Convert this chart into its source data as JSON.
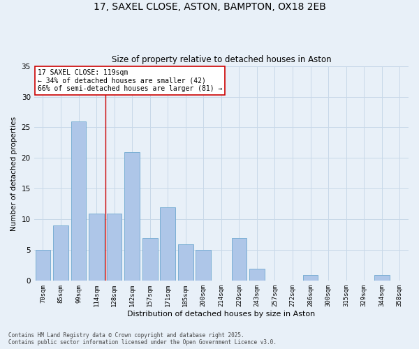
{
  "title_line1": "17, SAXEL CLOSE, ASTON, BAMPTON, OX18 2EB",
  "title_line2": "Size of property relative to detached houses in Aston",
  "xlabel": "Distribution of detached houses by size in Aston",
  "ylabel": "Number of detached properties",
  "categories": [
    "70sqm",
    "85sqm",
    "99sqm",
    "114sqm",
    "128sqm",
    "142sqm",
    "157sqm",
    "171sqm",
    "185sqm",
    "200sqm",
    "214sqm",
    "229sqm",
    "243sqm",
    "257sqm",
    "272sqm",
    "286sqm",
    "300sqm",
    "315sqm",
    "329sqm",
    "344sqm",
    "358sqm"
  ],
  "values": [
    5,
    9,
    26,
    11,
    11,
    21,
    7,
    12,
    6,
    5,
    0,
    7,
    2,
    0,
    0,
    1,
    0,
    0,
    0,
    1,
    0
  ],
  "bar_color": "#aec6e8",
  "bar_edge_color": "#7bafd4",
  "vline_x_idx": 3.5,
  "vline_color": "#cc0000",
  "annotation_text": "17 SAXEL CLOSE: 119sqm\n← 34% of detached houses are smaller (42)\n66% of semi-detached houses are larger (81) →",
  "annotation_box_color": "#ffffff",
  "annotation_box_edge": "#cc0000",
  "ylim": [
    0,
    35
  ],
  "yticks": [
    0,
    5,
    10,
    15,
    20,
    25,
    30,
    35
  ],
  "grid_color": "#c8d8e8",
  "bg_color": "#e8f0f8",
  "footnote": "Contains HM Land Registry data © Crown copyright and database right 2025.\nContains public sector information licensed under the Open Government Licence v3.0."
}
